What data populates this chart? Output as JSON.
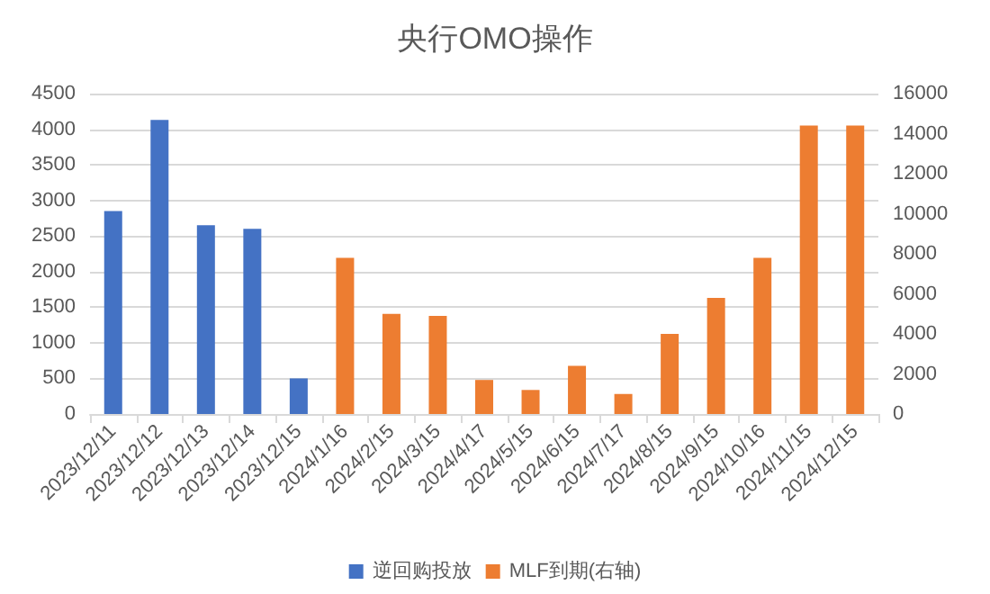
{
  "chart_data": {
    "type": "bar",
    "title": "央行OMO操作",
    "categories": [
      "2023/12/11",
      "2023/12/12",
      "2023/12/13",
      "2023/12/14",
      "2023/12/15",
      "2024/1/16",
      "2024/2/15",
      "2024/3/15",
      "2024/4/17",
      "2024/5/15",
      "2024/6/15",
      "2024/7/17",
      "2024/8/15",
      "2024/9/15",
      "2024/10/16",
      "2024/11/15",
      "2024/12/15"
    ],
    "series": [
      {
        "name": "逆回购投放",
        "color": "#4472c4",
        "values": [
          2850,
          4130,
          2650,
          2600,
          500,
          null,
          null,
          null,
          null,
          null,
          null,
          null,
          null,
          null,
          null,
          null,
          null
        ]
      },
      {
        "name": "MLF到期(右轴)",
        "color": "#ed7d31",
        "axis": "y2",
        "values": [
          null,
          null,
          null,
          null,
          null,
          7800,
          5000,
          4900,
          1700,
          1200,
          2400,
          1000,
          4000,
          5800,
          7800,
          14400,
          14400
        ]
      }
    ],
    "ylim": [
      0,
      4500
    ],
    "yticks": [
      0,
      500,
      1000,
      1500,
      2000,
      2500,
      3000,
      3500,
      4000,
      4500
    ],
    "y2lim": [
      0,
      16000
    ],
    "y2ticks": [
      0,
      2000,
      4000,
      6000,
      8000,
      10000,
      12000,
      14000,
      16000
    ],
    "grid": "y",
    "legend": "bottom"
  }
}
